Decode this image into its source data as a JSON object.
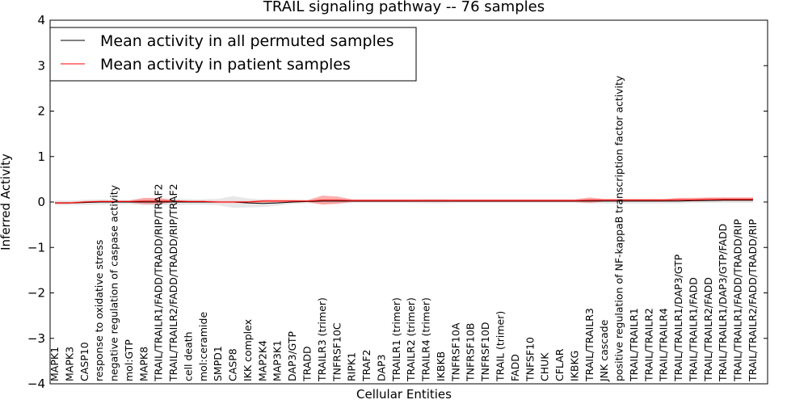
{
  "chart_data": {
    "type": "line",
    "title": "TRAIL signaling pathway -- 76 samples",
    "xlabel": "Cellular Entities",
    "ylabel": "Inferred Activity",
    "ylim": [
      -4,
      4
    ],
    "yticks": [
      -4,
      -3,
      -2,
      -1,
      0,
      1,
      2,
      3,
      4
    ],
    "ytick_labels": [
      "−4",
      "−3",
      "−2",
      "−1",
      "0",
      "1",
      "2",
      "3",
      "4"
    ],
    "legend_position": "top-left",
    "categories": [
      "MAPK1",
      "MAPK3",
      "CASP10",
      "response to oxidative stress",
      "negative regulation of caspase activity",
      "mol:GTP",
      "MAPK8",
      "TRAIL/TRAILR1/FADD/TRADD/RIP/TRAF2",
      "TRAIL/TRAILR2/FADD/TRADD/RIP/TRAF2",
      "cell death",
      "mol:ceramide",
      "SMPD1",
      "CASP8",
      "IKK complex",
      "MAP2K4",
      "MAP3K1",
      "DAP3/GTP",
      "TRADD",
      "TRAILR3 (trimer)",
      "TNFRSF10C",
      "RIPK1",
      "TRAF2",
      "DAP3",
      "TRAILR1 (trimer)",
      "TRAILR2 (trimer)",
      "TRAILR4 (trimer)",
      "IKBKB",
      "TNFRSF10A",
      "TNFRSF10B",
      "TNFRSF10D",
      "TRAIL (trimer)",
      "FADD",
      "TNFSF10",
      "CHUK",
      "CFLAR",
      "IKBKG",
      "TRAIL/TRAILR3",
      "JNK cascade",
      "positive regulation of NF-kappaB transcription factor activity",
      "TRAIL/TRAILR1",
      "TRAIL/TRAILR2",
      "TRAIL/TRAILR4",
      "TRAIL/TRAILR1/DAP3/GTP",
      "TRAIL/TRAILR1/FADD",
      "TRAIL/TRAILR2/FADD",
      "TRAIL/TRAILR1/DAP3/GTP/FADD",
      "TRAIL/TRAILR1/FADD/TRADD/RIP",
      "TRAIL/TRAILR2/FADD/TRADD/RIP"
    ],
    "series": [
      {
        "name": "Mean activity in all permuted samples",
        "color": "#000000",
        "band_color": "#bbbbbb",
        "values": [
          -0.02,
          -0.02,
          -0.01,
          0,
          0,
          0,
          0,
          0,
          0,
          0,
          0,
          0,
          0,
          -0.02,
          -0.03,
          -0.02,
          0,
          0.01,
          0.02,
          0.02,
          0.02,
          0.02,
          0.02,
          0.02,
          0.02,
          0.02,
          0.02,
          0.02,
          0.02,
          0.02,
          0.02,
          0.02,
          0.02,
          0.02,
          0.02,
          0.02,
          0.02,
          0.02,
          0.02,
          0.02,
          0.02,
          0.02,
          0.02,
          0.03,
          0.03,
          0.04,
          0.04,
          0.04
        ],
        "std": [
          0.05,
          0.05,
          0.06,
          0.06,
          0.05,
          0.05,
          0.07,
          0.07,
          0.07,
          0.06,
          0.06,
          0.07,
          0.13,
          0.1,
          0.08,
          0.06,
          0.04,
          0.04,
          0.05,
          0.05,
          0.04,
          0.04,
          0.04,
          0.04,
          0.04,
          0.05,
          0.05,
          0.04,
          0.04,
          0.04,
          0.04,
          0.04,
          0.04,
          0.04,
          0.04,
          0.04,
          0.05,
          0.05,
          0.05,
          0.05,
          0.05,
          0.05,
          0.05,
          0.05,
          0.05,
          0.06,
          0.06,
          0.06
        ]
      },
      {
        "name": "Mean activity in patient samples",
        "color": "#ff0000",
        "band_color": "#ff6b6b",
        "values": [
          -0.02,
          -0.02,
          0,
          0.01,
          0.01,
          0.01,
          0.02,
          0.02,
          0.02,
          0.01,
          0.01,
          0,
          0,
          0,
          0.02,
          0.02,
          0.02,
          0.02,
          0.04,
          0.04,
          0.03,
          0.03,
          0.03,
          0.03,
          0.03,
          0.03,
          0.03,
          0.03,
          0.03,
          0.03,
          0.03,
          0.03,
          0.03,
          0.03,
          0.03,
          0.03,
          0.04,
          0.04,
          0.04,
          0.04,
          0.04,
          0.04,
          0.05,
          0.05,
          0.06,
          0.06,
          0.06,
          0.06
        ],
        "std": [
          0.02,
          0.02,
          0.02,
          0.02,
          0.02,
          0.02,
          0.07,
          0.07,
          0.02,
          0.02,
          0.02,
          0.02,
          0.02,
          0.02,
          0.03,
          0.03,
          0.03,
          0.02,
          0.1,
          0.08,
          0.03,
          0.03,
          0.03,
          0.03,
          0.03,
          0.03,
          0.03,
          0.03,
          0.03,
          0.03,
          0.03,
          0.03,
          0.03,
          0.03,
          0.03,
          0.03,
          0.06,
          0.03,
          0.03,
          0.03,
          0.03,
          0.03,
          0.04,
          0.04,
          0.04,
          0.04,
          0.04,
          0.04
        ]
      }
    ]
  }
}
